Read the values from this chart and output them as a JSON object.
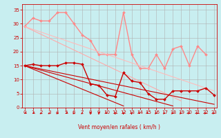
{
  "background_color": "#c8eef0",
  "grid_color": "#b0b0b0",
  "xlabel": "Vent moyen/en rafales ( km/h )",
  "x_ticks": [
    0,
    1,
    2,
    3,
    4,
    5,
    6,
    7,
    8,
    9,
    10,
    11,
    12,
    13,
    14,
    15,
    16,
    17,
    18,
    19,
    20,
    21,
    22,
    23
  ],
  "y_ticks": [
    0,
    5,
    10,
    15,
    20,
    25,
    30,
    35
  ],
  "ylim": [
    0,
    37
  ],
  "xlim": [
    -0.3,
    23.3
  ],
  "series_light": [
    {
      "color": "#ff8888",
      "lw": 1.0,
      "marker": "D",
      "ms": 2.0,
      "y": [
        29,
        32,
        31,
        31,
        34,
        34,
        30,
        26,
        24,
        19,
        19,
        19,
        34,
        19,
        14,
        14,
        19,
        14,
        21,
        22,
        15,
        22,
        19,
        null
      ]
    },
    {
      "color": "#ffaaaa",
      "lw": 0.8,
      "marker": null,
      "y": [
        29.0,
        27.6,
        26.2,
        24.8,
        23.4,
        22.0,
        20.6,
        19.2,
        17.8,
        16.4,
        15.0,
        13.6,
        12.2,
        10.8,
        9.4,
        8.0,
        6.6,
        5.2,
        3.8,
        2.4,
        null,
        null,
        null,
        null
      ]
    },
    {
      "color": "#ffbbbb",
      "lw": 0.8,
      "marker": null,
      "y": [
        29.0,
        28.0,
        27.0,
        26.0,
        25.0,
        24.0,
        23.0,
        22.0,
        21.0,
        20.0,
        19.0,
        18.0,
        17.0,
        16.0,
        15.0,
        14.0,
        13.0,
        12.0,
        11.0,
        10.0,
        9.0,
        8.0,
        7.0,
        6.0
      ]
    }
  ],
  "series_dark": [
    {
      "color": "#cc0000",
      "lw": 1.0,
      "marker": "D",
      "ms": 2.0,
      "y": [
        15,
        15.5,
        15,
        15,
        15,
        16,
        16,
        15.5,
        8.5,
        8,
        4.5,
        4,
        12.5,
        9.5,
        9,
        5,
        3,
        3,
        6,
        6,
        6,
        6,
        7,
        4.5
      ]
    },
    {
      "color": "#cc0000",
      "lw": 0.8,
      "marker": null,
      "y": [
        15.0,
        14.2,
        13.4,
        12.6,
        11.8,
        11.0,
        10.2,
        9.4,
        8.6,
        7.8,
        7.0,
        6.2,
        5.4,
        4.6,
        3.8,
        3.0,
        2.2,
        1.4,
        0.6,
        null,
        null,
        null,
        null,
        null
      ]
    },
    {
      "color": "#cc0000",
      "lw": 0.8,
      "marker": null,
      "y": [
        15.0,
        14.4,
        13.8,
        13.2,
        12.6,
        12.0,
        11.4,
        10.8,
        10.2,
        9.6,
        9.0,
        8.4,
        7.8,
        7.2,
        6.6,
        6.0,
        5.4,
        4.8,
        4.2,
        3.6,
        3.0,
        2.4,
        1.8,
        1.2
      ]
    },
    {
      "color": "#cc0000",
      "lw": 0.8,
      "marker": null,
      "y": [
        15.0,
        13.8,
        12.6,
        11.4,
        10.2,
        9.0,
        7.8,
        6.6,
        5.4,
        4.2,
        3.0,
        1.8,
        0.6,
        null,
        null,
        null,
        null,
        null,
        null,
        null,
        null,
        null,
        null,
        null
      ]
    }
  ],
  "wind_angles": [
    225,
    225,
    210,
    210,
    210,
    225,
    210,
    210,
    180,
    180,
    135,
    180,
    180,
    180,
    135,
    135,
    90,
    90,
    90,
    90,
    90,
    90,
    90,
    90
  ]
}
